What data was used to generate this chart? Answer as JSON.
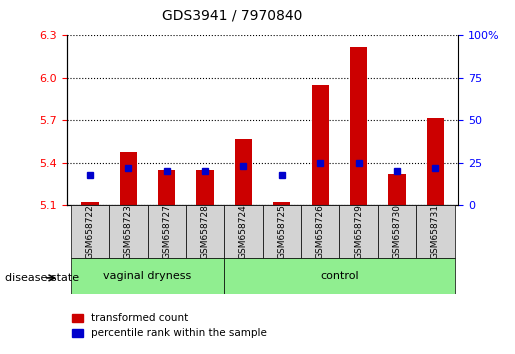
{
  "title": "GDS3941 / 7970840",
  "samples": [
    "GSM658722",
    "GSM658723",
    "GSM658727",
    "GSM658728",
    "GSM658724",
    "GSM658725",
    "GSM658726",
    "GSM658729",
    "GSM658730",
    "GSM658731"
  ],
  "transformed_count": [
    5.12,
    5.48,
    5.35,
    5.35,
    5.57,
    5.12,
    5.95,
    6.22,
    5.32,
    5.72
  ],
  "percentile_rank": [
    18,
    22,
    20,
    20,
    23,
    18,
    25,
    25,
    20,
    22
  ],
  "ylim_left": [
    5.1,
    6.3
  ],
  "ylim_right": [
    0,
    100
  ],
  "yticks_left": [
    5.1,
    5.4,
    5.7,
    6.0,
    6.3
  ],
  "yticks_right": [
    0,
    25,
    50,
    75,
    100
  ],
  "bar_color": "#cc0000",
  "dot_color": "#0000cc",
  "grid_color": "#000000",
  "bar_baseline": 5.1,
  "group1": {
    "label": "vaginal dryness",
    "indices": [
      0,
      1,
      2,
      3
    ],
    "color": "#90ee90"
  },
  "group2": {
    "label": "control",
    "indices": [
      4,
      5,
      6,
      7,
      8,
      9
    ],
    "color": "#90ee90"
  },
  "legend_tc": "transformed count",
  "legend_pr": "percentile rank within the sample",
  "disease_state_label": "disease state",
  "box_color": "#d3d3d3"
}
